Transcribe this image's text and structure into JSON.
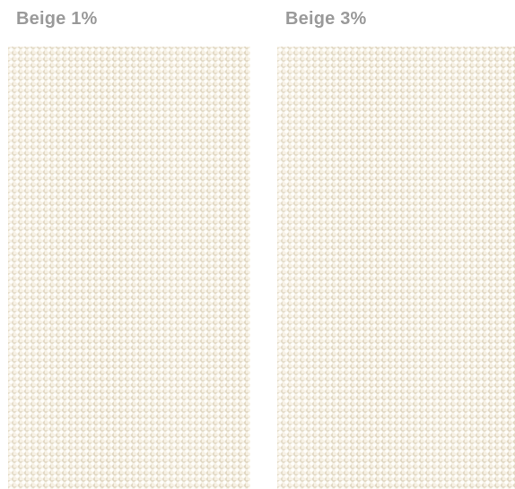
{
  "swatches": [
    {
      "label": "Beige 1%",
      "fabric_color": "#f6f0e3"
    },
    {
      "label": "Beige 3%",
      "fabric_color": "#f6f0e3"
    }
  ],
  "colors": {
    "label_text": "#9a9a9a",
    "fabric_base": "#f6f0e3",
    "fabric_thread": "#ded4be"
  }
}
